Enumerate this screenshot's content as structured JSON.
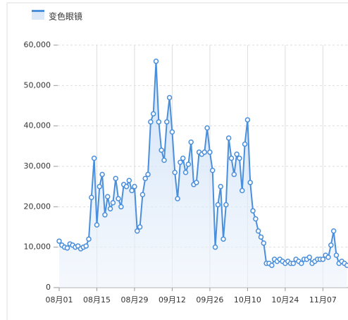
{
  "chart_data": {
    "type": "line",
    "categories": [
      "08月01",
      null,
      null,
      null,
      null,
      null,
      null,
      null,
      null,
      null,
      null,
      null,
      null,
      null,
      "08月15",
      null,
      null,
      null,
      null,
      null,
      null,
      null,
      null,
      null,
      null,
      null,
      null,
      null,
      "08月29",
      null,
      null,
      null,
      null,
      null,
      null,
      null,
      null,
      null,
      null,
      null,
      null,
      null,
      "09月12",
      null,
      null,
      null,
      null,
      null,
      null,
      null,
      null,
      null,
      null,
      null,
      null,
      null,
      "09月26",
      null,
      null,
      null,
      null,
      null,
      null,
      null,
      null,
      null,
      null,
      null,
      null,
      null,
      "10月10",
      null,
      null,
      null,
      null,
      null,
      null,
      null,
      null,
      null,
      null,
      null,
      null,
      null,
      "10月24",
      null,
      null,
      null,
      null,
      null,
      null,
      null,
      null,
      null,
      null,
      null,
      null,
      null,
      "11月07",
      null,
      null,
      null,
      null,
      null,
      null,
      null,
      null,
      null
    ],
    "series": [
      {
        "name": "变色眼镜",
        "color": "#4a8fdc",
        "values": [
          11500,
          10500,
          10000,
          9800,
          10800,
          10500,
          10000,
          10300,
          9600,
          10000,
          10300,
          12000,
          22300,
          32000,
          15500,
          25000,
          28000,
          18000,
          22500,
          19500,
          21000,
          27000,
          22000,
          20000,
          25500,
          25000,
          26500,
          24000,
          25000,
          14000,
          15000,
          23000,
          27000,
          28000,
          41000,
          43000,
          56000,
          41000,
          34000,
          31500,
          41000,
          47000,
          38500,
          28500,
          22000,
          31000,
          32000,
          28500,
          30500,
          36000,
          25500,
          26000,
          33500,
          33000,
          33500,
          39500,
          33500,
          29000,
          10000,
          20500,
          25000,
          12000,
          20500,
          37000,
          32000,
          28000,
          33000,
          32000,
          24000,
          35500,
          41500,
          26000,
          19000,
          17000,
          14000,
          12500,
          11000,
          6000,
          6000,
          5500,
          7000,
          6500,
          7000,
          6500,
          6000,
          6500,
          6000,
          6000,
          7000,
          6500,
          6000,
          7000,
          7000,
          7500,
          6000,
          6500,
          7000,
          7000,
          7000,
          8000,
          7500,
          10500,
          14000,
          8000,
          6000,
          6500,
          6000,
          5500
        ]
      }
    ],
    "ylim": [
      0,
      60000
    ],
    "yticks": [
      0,
      {
        "value": 10000,
        "label": "10,000"
      },
      {
        "value": 20000,
        "label": "20,000"
      },
      {
        "value": 30000,
        "label": "30,000"
      },
      {
        "value": 40000,
        "label": "40,000"
      },
      {
        "value": 50000,
        "label": "50,000"
      },
      {
        "value": 60000,
        "label": "60,000"
      }
    ],
    "grid": true,
    "area": true
  }
}
